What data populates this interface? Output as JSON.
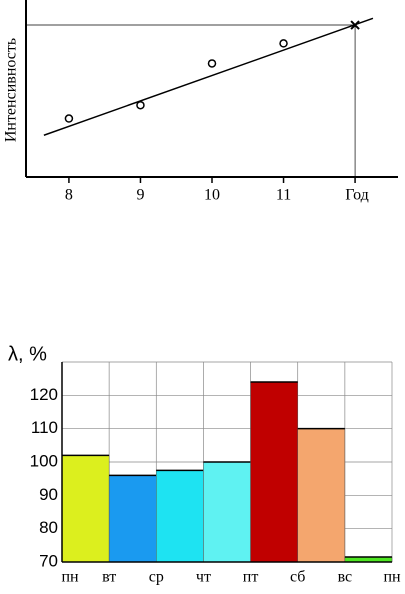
{
  "chart_data": [
    {
      "type": "scatter",
      "ylabel": "Интенсивность",
      "xlabel": "Год",
      "x": [
        8,
        9,
        10,
        11
      ],
      "values": [
        35,
        43,
        68,
        80
      ],
      "marker_x": 12,
      "marker_value": 91,
      "trend": {
        "x": [
          7.65,
          12.25
        ],
        "values": [
          25,
          95
        ]
      },
      "xlim": [
        7.4,
        12.6
      ],
      "ylim": [
        0,
        100
      ],
      "xticks": [
        8,
        9,
        10,
        11
      ],
      "color": "#000000"
    },
    {
      "type": "bar",
      "ylabel": "λ, %",
      "categories": [
        "пн",
        "вт",
        "ср",
        "чт",
        "пт",
        "сб",
        "вс",
        "пн"
      ],
      "values": [
        102,
        96,
        97.5,
        100,
        124,
        110,
        71.5,
        null
      ],
      "colors": [
        "#dcef1e",
        "#1a9af0",
        "#1ee3f2",
        "#5ff2f2",
        "#c00000",
        "#f4a66e",
        "#4ee622",
        null
      ],
      "ylim": [
        70,
        130
      ],
      "yticks": [
        70,
        80,
        90,
        100,
        110,
        120
      ],
      "grid": true
    }
  ]
}
